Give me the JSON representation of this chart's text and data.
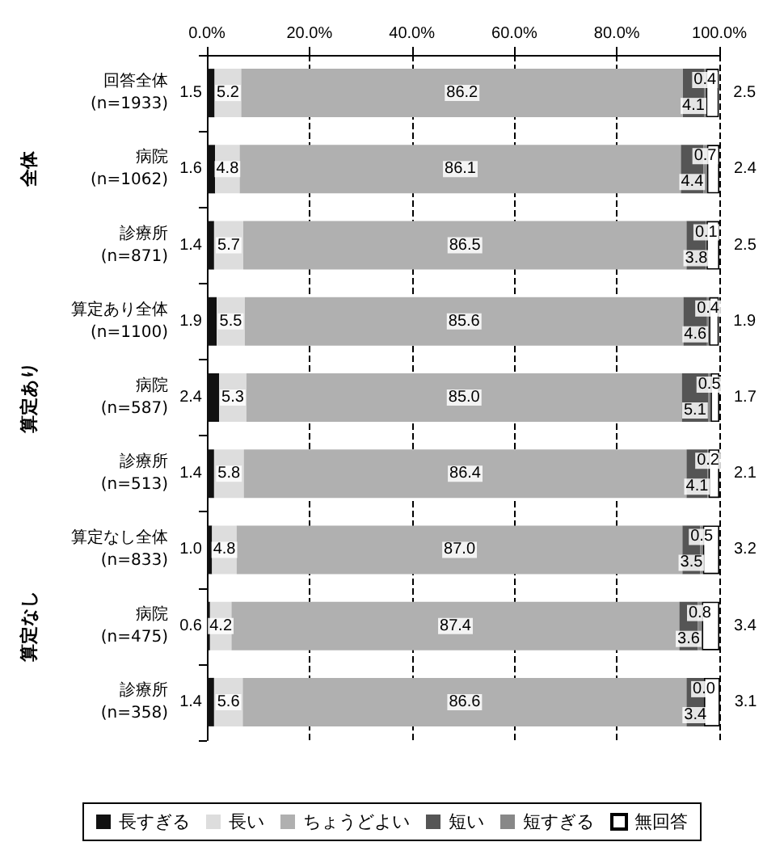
{
  "chart_data": {
    "type": "bar",
    "orientation": "horizontal",
    "stacked": true,
    "grid": "x",
    "legend": "bottom",
    "categories": [
      "回答全体\n(n=1933)",
      "病院\n(n=1062)",
      "診療所\n(n=871)",
      "算定あり全体\n(n=1100)",
      "病院\n(n=587)",
      "診療所\n(n=513)",
      "算定なし全体\n(n=833)",
      "病院\n(n=475)",
      "診療所\n(n=358)"
    ],
    "annotations": [
      "全体",
      "算定あり",
      "算定なし"
    ],
    "xlim": [
      0,
      100
    ],
    "xticks": [
      {
        "value": 0,
        "label": "0.0%"
      },
      {
        "value": 20,
        "label": "20.0%"
      },
      {
        "value": 40,
        "label": "40.0%"
      },
      {
        "value": 60,
        "label": "60.0%"
      },
      {
        "value": 80,
        "label": "80.0%"
      },
      {
        "value": 100,
        "label": "100.0%"
      }
    ],
    "series": [
      {
        "name": "長すぎる",
        "color": "#111111",
        "values": [
          1.5,
          1.6,
          1.4,
          1.9,
          2.4,
          1.4,
          1.0,
          0.6,
          1.4
        ],
        "value_labels": [
          "1.5",
          "1.6",
          "1.4",
          "1.9",
          "2.4",
          "1.4",
          "1.0",
          "0.6",
          "1.4"
        ]
      },
      {
        "name": "長い",
        "color": "#dddddd",
        "values": [
          5.2,
          4.8,
          5.7,
          5.5,
          5.3,
          5.8,
          4.8,
          4.2,
          5.6
        ],
        "value_labels": [
          "5.2",
          "4.8",
          "5.7",
          "5.5",
          "5.3",
          "5.8",
          "4.8",
          "4.2",
          "5.6"
        ]
      },
      {
        "name": "ちょうどよい",
        "color": "#b0b0b0",
        "values": [
          86.2,
          86.1,
          86.5,
          85.6,
          85.0,
          86.4,
          87.0,
          87.4,
          86.6
        ],
        "value_labels": [
          "86.2",
          "86.1",
          "86.5",
          "85.6",
          "85.0",
          "86.4",
          "87.0",
          "87.4",
          "86.6"
        ]
      },
      {
        "name": "短い",
        "color": "#555555",
        "values": [
          4.1,
          4.4,
          3.8,
          4.6,
          5.1,
          4.1,
          3.5,
          3.6,
          3.4
        ],
        "value_labels": [
          "4.1",
          "4.4",
          "3.8",
          "4.6",
          "5.1",
          "4.1",
          "3.5",
          "3.6",
          "3.4"
        ]
      },
      {
        "name": "短すぎる",
        "color": "#888888",
        "values": [
          0.4,
          0.7,
          0.1,
          0.4,
          0.5,
          0.2,
          0.5,
          0.8,
          0.0
        ],
        "value_labels": [
          "0.4",
          "0.7",
          "0.1",
          "0.4",
          "0.5",
          "0.2",
          "0.5",
          "0.8",
          "0.0"
        ]
      },
      {
        "name": "無回答",
        "color": "#ffffff",
        "values": [
          2.5,
          2.4,
          2.5,
          1.9,
          1.7,
          2.1,
          3.2,
          3.4,
          3.1
        ],
        "value_labels": [
          "2.5",
          "2.4",
          "2.5",
          "1.9",
          "1.7",
          "2.1",
          "3.2",
          "3.4",
          "3.1"
        ]
      }
    ]
  }
}
